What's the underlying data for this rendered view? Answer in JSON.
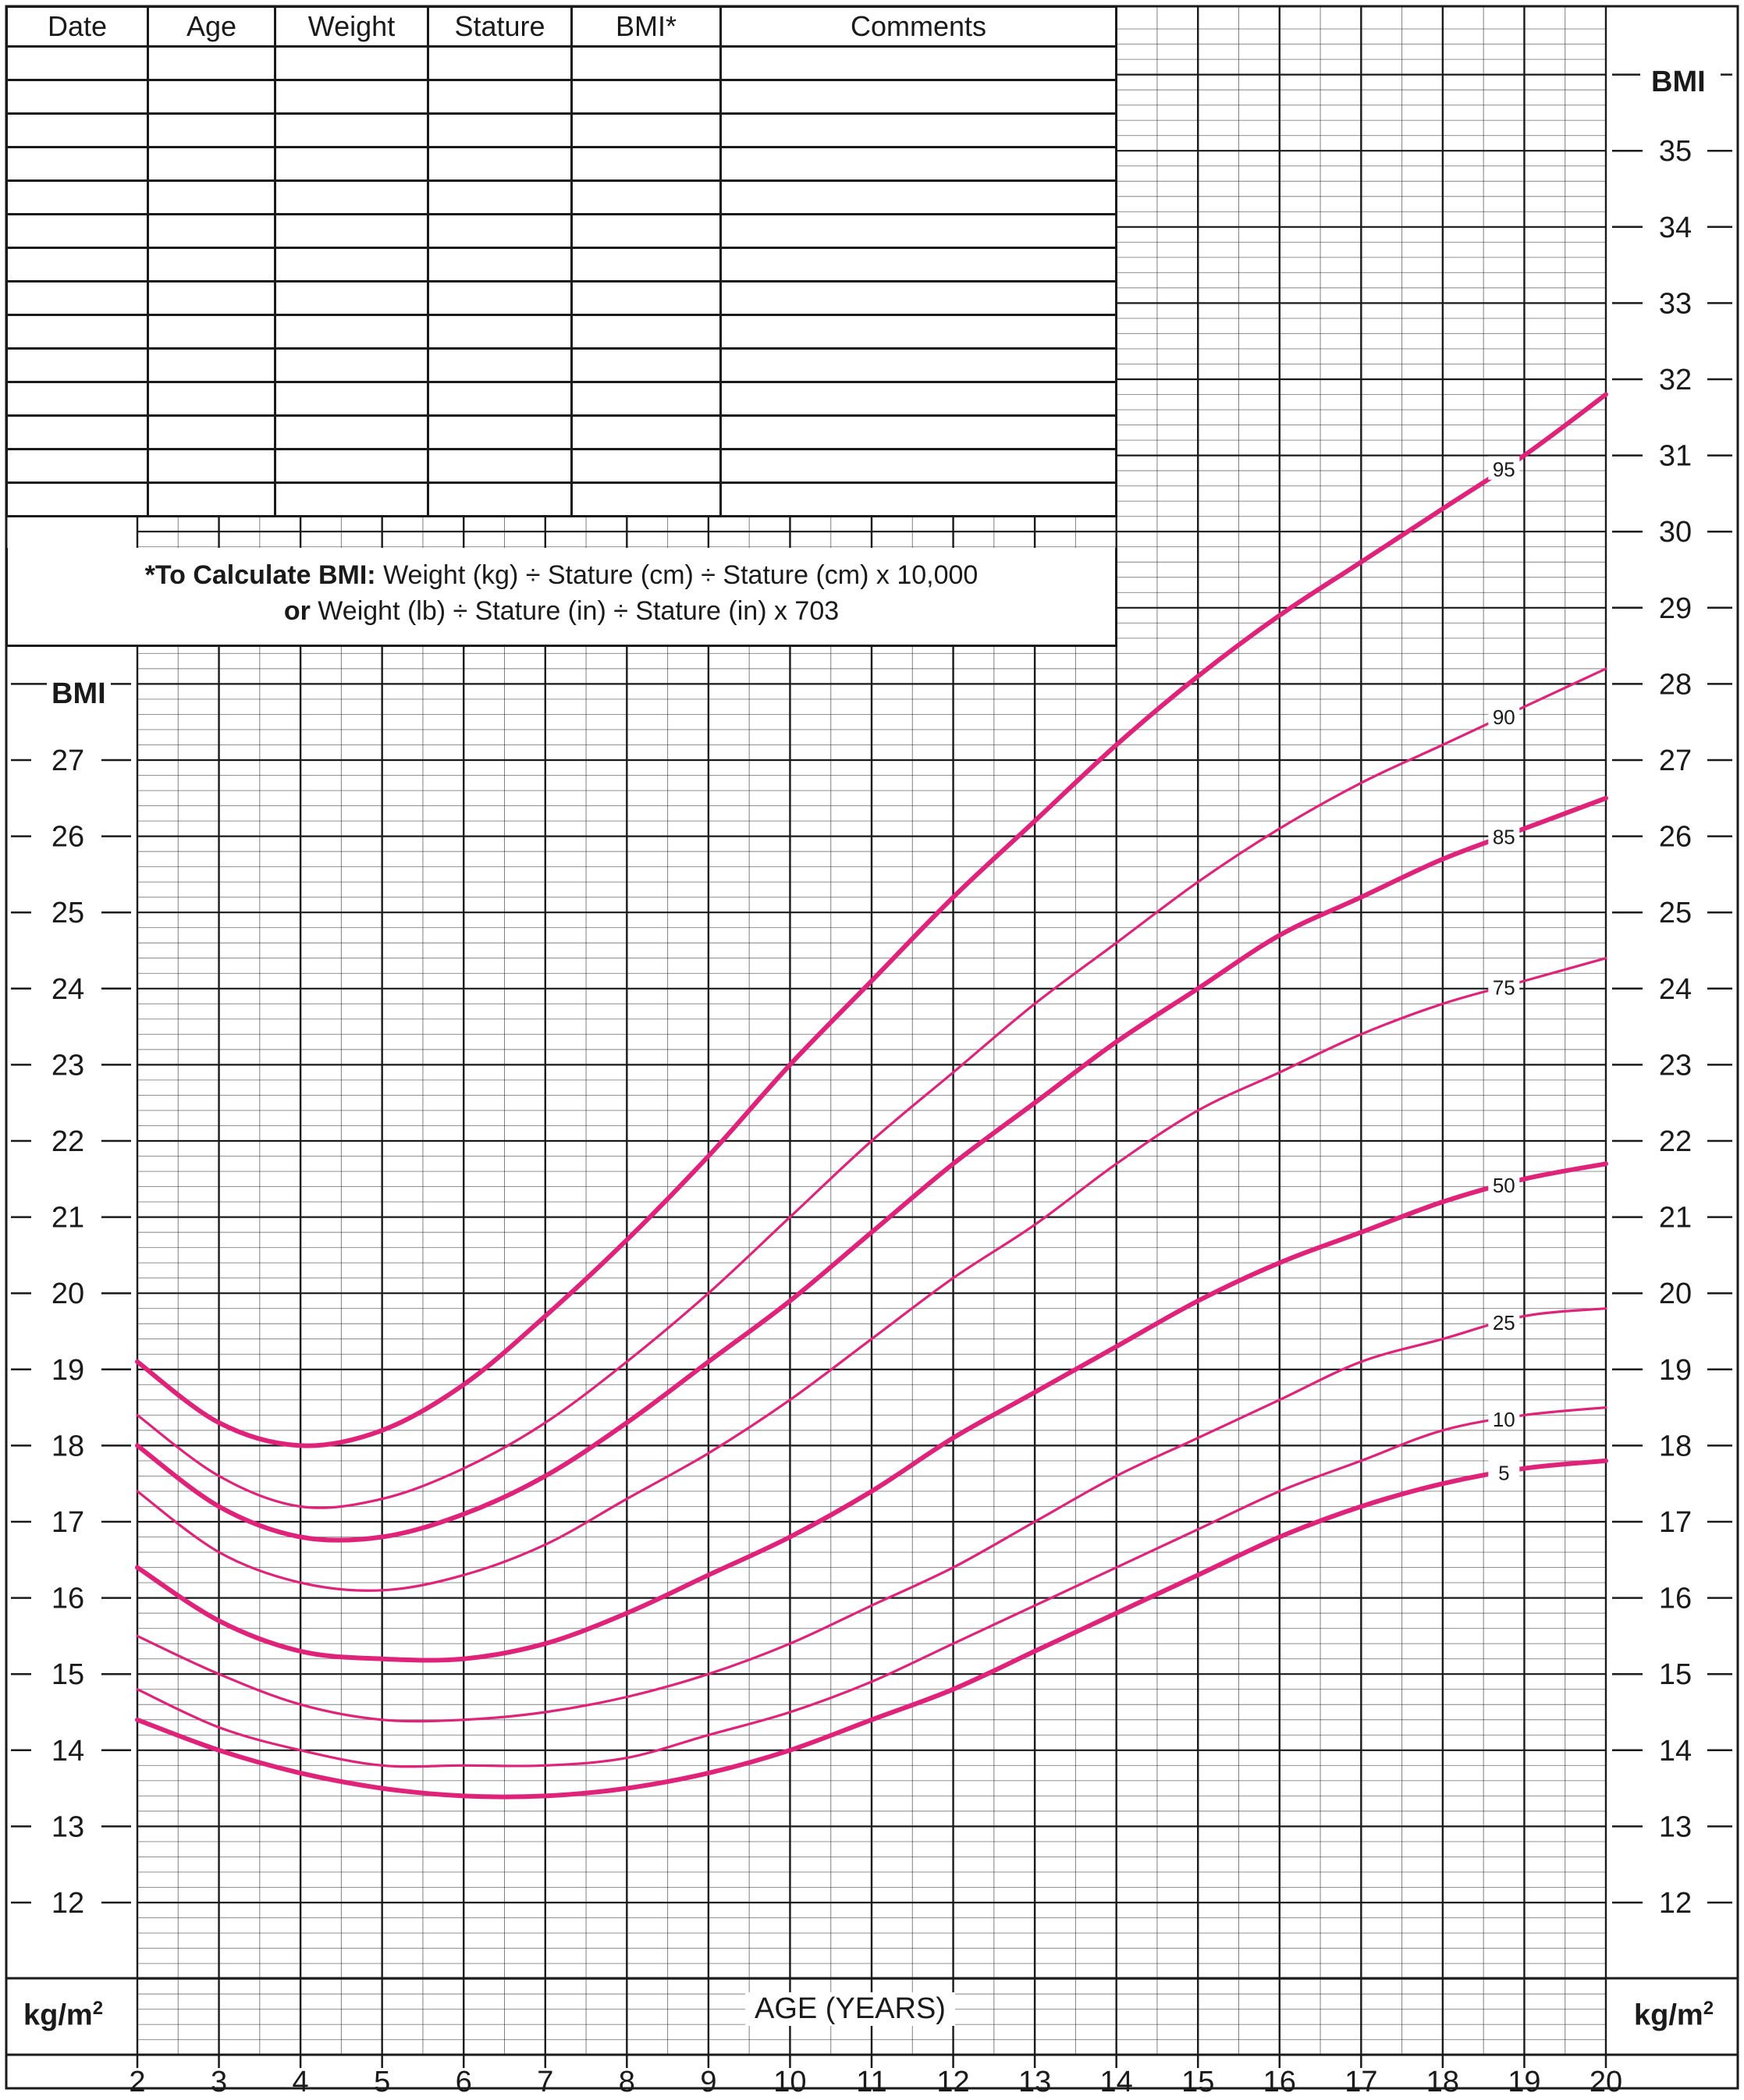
{
  "table": {
    "headers": [
      "Date",
      "Age",
      "Weight",
      "Stature",
      "BMI*",
      "Comments"
    ],
    "empty_rows": 14
  },
  "formula": {
    "line1_bold": "*To Calculate BMI:",
    "line1_rest": " Weight (kg) ÷ Stature (cm) ÷ Stature (cm) x 10,000",
    "line2_bold": "or",
    "line2_rest": " Weight (lb) ÷ Stature (in) ÷ Stature (in) x 703"
  },
  "labels": {
    "bmi_left": "BMI",
    "bmi_right": "BMI",
    "unit_left": "kg/m",
    "unit_right": "kg/m",
    "unit_sup": "2",
    "x_title": "AGE (YEARS)"
  },
  "colors": {
    "curve": "#e0237a",
    "grid": "#1a1a1a"
  },
  "chart_data": {
    "type": "line",
    "xlabel": "AGE (YEARS)",
    "ylabel": "BMI",
    "xlim": [
      2,
      20
    ],
    "ylim": [
      12,
      36
    ],
    "x_ticks": [
      2,
      3,
      4,
      5,
      6,
      7,
      8,
      9,
      10,
      11,
      12,
      13,
      14,
      15,
      16,
      17,
      18,
      19,
      20
    ],
    "y_ticks_left": [
      12,
      13,
      14,
      15,
      16,
      17,
      18,
      19,
      20,
      21,
      22,
      23,
      24,
      25,
      26,
      27
    ],
    "y_ticks_right": [
      12,
      13,
      14,
      15,
      16,
      17,
      18,
      19,
      20,
      21,
      22,
      23,
      24,
      25,
      26,
      27,
      28,
      29,
      30,
      31,
      32,
      33,
      34,
      35
    ],
    "x": [
      2,
      3,
      4,
      5,
      6,
      7,
      8,
      9,
      10,
      11,
      12,
      13,
      14,
      15,
      16,
      17,
      18,
      19,
      20
    ],
    "series": [
      {
        "name": "95",
        "bold": true,
        "values": [
          19.1,
          18.3,
          18.0,
          18.2,
          18.8,
          19.7,
          20.7,
          21.8,
          23.0,
          24.1,
          25.2,
          26.2,
          27.2,
          28.1,
          28.9,
          29.6,
          30.3,
          31.0,
          31.8
        ]
      },
      {
        "name": "90",
        "bold": false,
        "values": [
          18.4,
          17.6,
          17.2,
          17.3,
          17.7,
          18.3,
          19.1,
          20.0,
          21.0,
          22.0,
          22.9,
          23.8,
          24.6,
          25.4,
          26.1,
          26.7,
          27.2,
          27.7,
          28.2
        ]
      },
      {
        "name": "85",
        "bold": true,
        "values": [
          18.0,
          17.2,
          16.8,
          16.8,
          17.1,
          17.6,
          18.3,
          19.1,
          19.9,
          20.8,
          21.7,
          22.5,
          23.3,
          24.0,
          24.7,
          25.2,
          25.7,
          26.1,
          26.5
        ]
      },
      {
        "name": "75",
        "bold": false,
        "values": [
          17.4,
          16.6,
          16.2,
          16.1,
          16.3,
          16.7,
          17.3,
          17.9,
          18.6,
          19.4,
          20.2,
          20.9,
          21.7,
          22.4,
          22.9,
          23.4,
          23.8,
          24.1,
          24.4
        ]
      },
      {
        "name": "50",
        "bold": true,
        "values": [
          16.4,
          15.7,
          15.3,
          15.2,
          15.2,
          15.4,
          15.8,
          16.3,
          16.8,
          17.4,
          18.1,
          18.7,
          19.3,
          19.9,
          20.4,
          20.8,
          21.2,
          21.5,
          21.7
        ]
      },
      {
        "name": "25",
        "bold": false,
        "values": [
          15.5,
          15.0,
          14.6,
          14.4,
          14.4,
          14.5,
          14.7,
          15.0,
          15.4,
          15.9,
          16.4,
          17.0,
          17.6,
          18.1,
          18.6,
          19.1,
          19.4,
          19.7,
          19.8
        ]
      },
      {
        "name": "10",
        "bold": false,
        "values": [
          14.8,
          14.3,
          14.0,
          13.8,
          13.8,
          13.8,
          13.9,
          14.2,
          14.5,
          14.9,
          15.4,
          15.9,
          16.4,
          16.9,
          17.4,
          17.8,
          18.2,
          18.4,
          18.5
        ]
      },
      {
        "name": "5",
        "bold": true,
        "values": [
          14.4,
          14.0,
          13.7,
          13.5,
          13.4,
          13.4,
          13.5,
          13.7,
          14.0,
          14.4,
          14.8,
          15.3,
          15.8,
          16.3,
          16.8,
          17.2,
          17.5,
          17.7,
          17.8
        ]
      }
    ]
  }
}
